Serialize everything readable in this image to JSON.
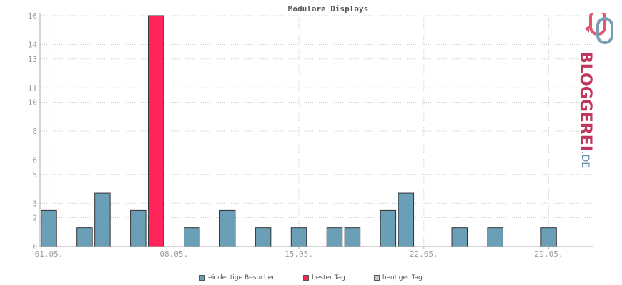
{
  "chart_data": {
    "type": "bar",
    "title": "Modulare Displays",
    "xlabel": "",
    "ylabel": "",
    "ylim": [
      0,
      16
    ],
    "yticks": [
      0,
      2,
      3,
      5,
      6,
      8,
      10,
      11,
      13,
      14,
      16
    ],
    "x_tick_labels": [
      {
        "day": 1,
        "label": "01.05."
      },
      {
        "day": 8,
        "label": "08.05."
      },
      {
        "day": 15,
        "label": "15.05."
      },
      {
        "day": 22,
        "label": "22.05."
      },
      {
        "day": 29,
        "label": "29.05."
      }
    ],
    "days": [
      1,
      2,
      3,
      4,
      5,
      6,
      7,
      8,
      9,
      10,
      11,
      12,
      13,
      14,
      15,
      16,
      17,
      18,
      19,
      20,
      21,
      22,
      23,
      24,
      25,
      26,
      27,
      28,
      29,
      30
    ],
    "values": [
      2.5,
      0,
      1.3,
      3.7,
      0,
      2.5,
      16,
      0,
      1.3,
      0,
      2.5,
      0,
      1.3,
      0,
      1.3,
      0,
      1.3,
      1.3,
      0,
      2.5,
      3.7,
      0,
      0,
      1.3,
      0,
      1.3,
      0,
      0,
      1.3,
      0
    ],
    "best_day": 7,
    "grid": true,
    "legend_position": "bottom-center",
    "colors": {
      "visitors": "#6b9fb8",
      "best": "#ff2459",
      "today": "#cccccc",
      "grid": "#cccccc",
      "axis": "#aaaaaa"
    }
  },
  "legend": {
    "items": [
      {
        "label": "eindeutige Besucher",
        "color": "#6b9fb8"
      },
      {
        "label": "bester Tag",
        "color": "#ff2459"
      },
      {
        "label": "heutiger Tag",
        "color": "#cccccc"
      }
    ]
  },
  "logo": {
    "word": "BLOGGEREI",
    "tld": ".DE"
  }
}
